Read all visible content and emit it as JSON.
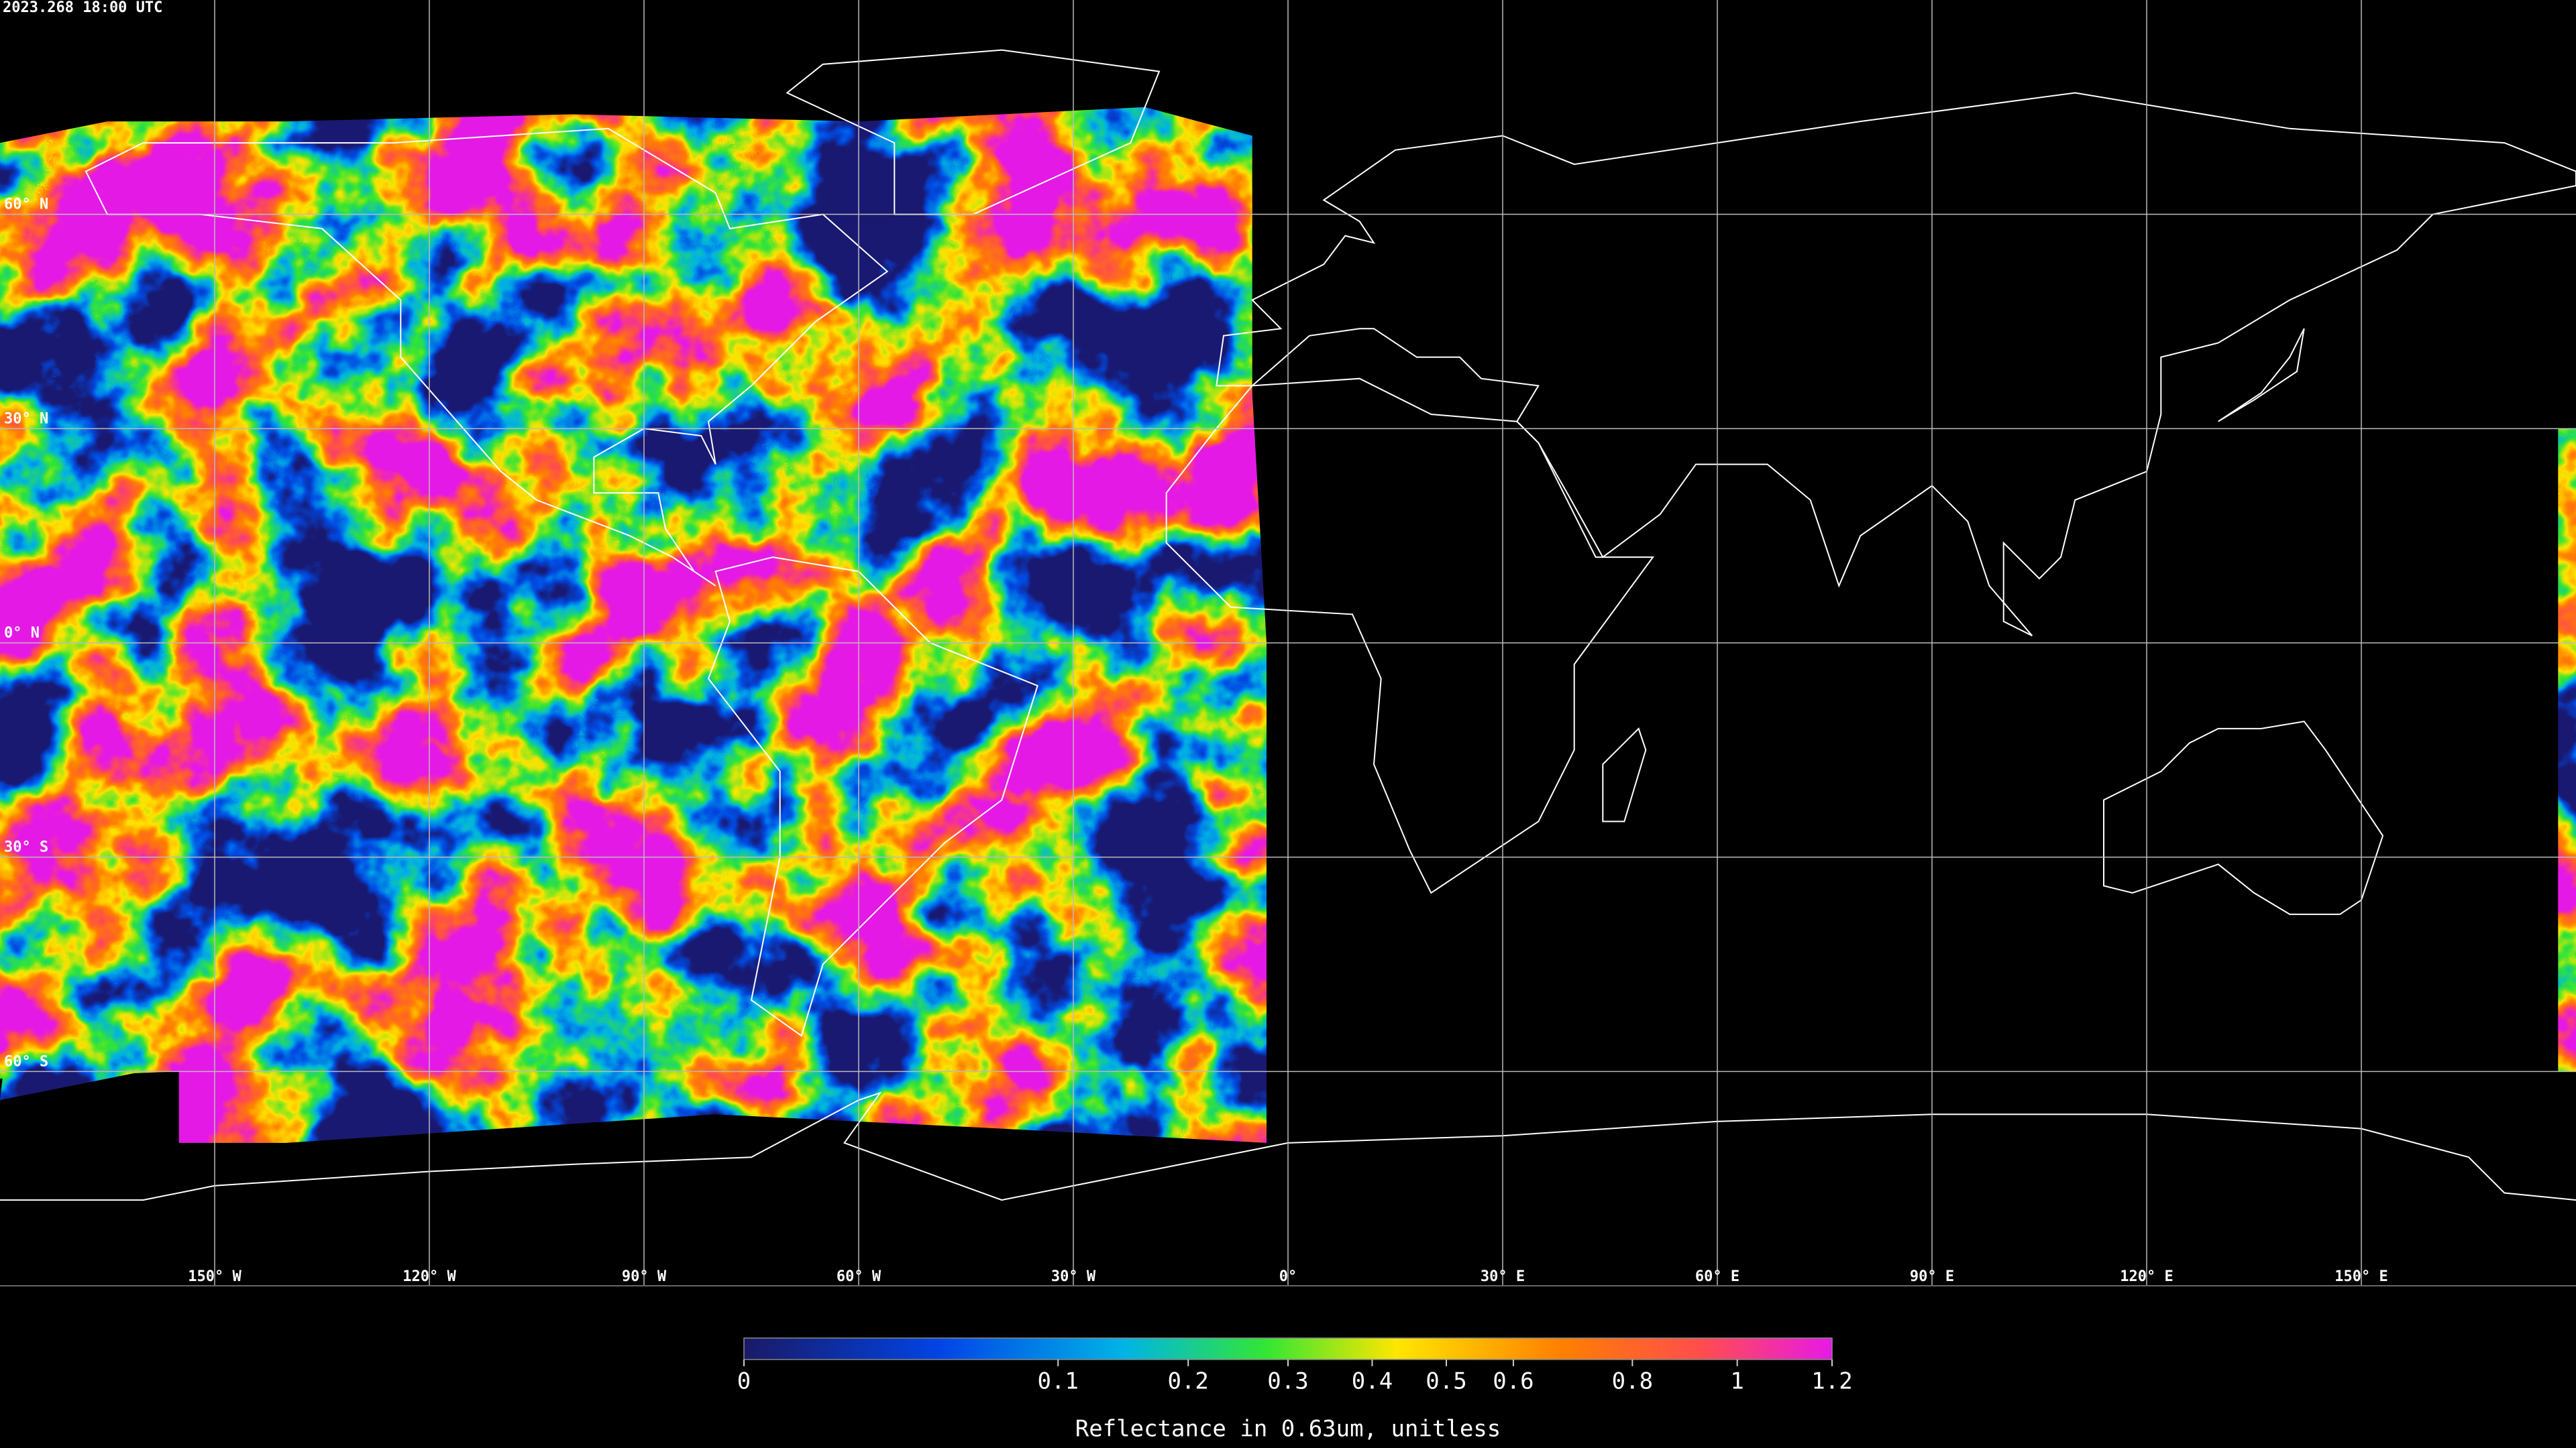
{
  "header": {
    "title": "2023.268 18:00 UTC"
  },
  "map": {
    "projection": "equirectangular",
    "xlim": [
      -180,
      180
    ],
    "ylim": [
      -90,
      90
    ],
    "grid": true,
    "lat_ticks": [
      {
        "value": 60,
        "label": "60° N"
      },
      {
        "value": 30,
        "label": "30° N"
      },
      {
        "value": 0,
        "label": "0° N"
      },
      {
        "value": -30,
        "label": "30° S"
      },
      {
        "value": -60,
        "label": "60° S"
      }
    ],
    "lon_ticks": [
      {
        "value": -150,
        "label": "150° W"
      },
      {
        "value": -120,
        "label": "120° W"
      },
      {
        "value": -90,
        "label": "90° W"
      },
      {
        "value": -60,
        "label": "60° W"
      },
      {
        "value": -30,
        "label": "30° W"
      },
      {
        "value": 0,
        "label": "0°"
      },
      {
        "value": 30,
        "label": "30° E"
      },
      {
        "value": 60,
        "label": "60° E"
      },
      {
        "value": 90,
        "label": "90° E"
      },
      {
        "value": 120,
        "label": "120° E"
      },
      {
        "value": 150,
        "label": "150° E"
      }
    ]
  },
  "colorbar": {
    "label": "Reflectance in 0.63um, unitless",
    "scale": "sqrt",
    "lim": [
      0,
      1.2
    ],
    "ticks": [
      0,
      0.1,
      0.2,
      0.3,
      0.4,
      0.5,
      0.6,
      0.8,
      1,
      1.2
    ]
  }
}
